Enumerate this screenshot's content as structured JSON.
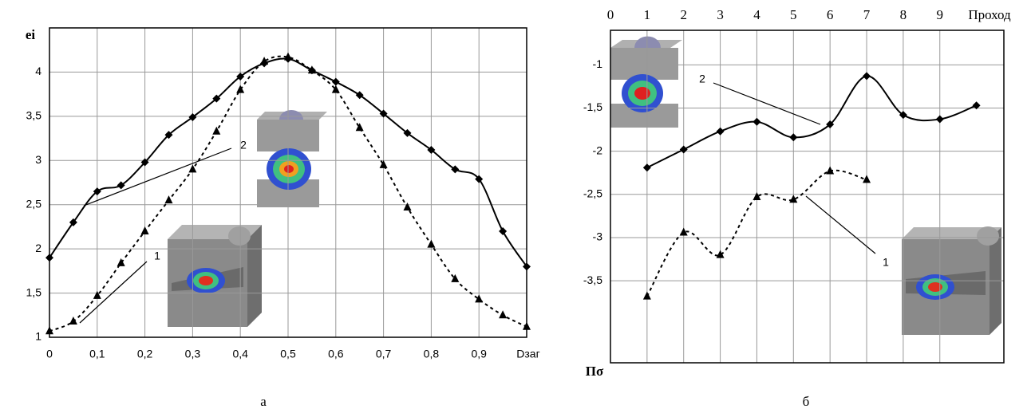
{
  "chart_data": [
    {
      "type": "line",
      "x": [
        0,
        0.05,
        0.1,
        0.15,
        0.2,
        0.25,
        0.3,
        0.35,
        0.4,
        0.45,
        0.5,
        0.55,
        0.6,
        0.65,
        0.7,
        0.75,
        0.8,
        0.85,
        0.9,
        0.95,
        1.0
      ],
      "series": [
        {
          "name": "1",
          "color": "#000000",
          "marker": "triangle",
          "style": "dashed",
          "values": [
            1.07,
            1.18,
            1.47,
            1.84,
            2.2,
            2.55,
            2.9,
            3.33,
            3.8,
            4.12,
            4.17,
            4.02,
            3.8,
            3.37,
            2.95,
            2.47,
            2.05,
            1.66,
            1.43,
            1.25,
            1.12
          ]
        },
        {
          "name": "2",
          "color": "#000000",
          "marker": "diamond",
          "style": "solid",
          "values": [
            1.9,
            2.3,
            2.65,
            2.72,
            2.98,
            3.29,
            3.49,
            3.7,
            3.95,
            4.1,
            4.15,
            4.02,
            3.89,
            3.74,
            3.53,
            3.31,
            3.12,
            2.9,
            2.79,
            2.2,
            1.8
          ]
        }
      ],
      "xlim": [
        0,
        1
      ],
      "ylim": [
        1,
        4.5
      ],
      "xticks": [
        0,
        {
          "value": 0.1,
          "label": "0,1"
        },
        {
          "value": 0.2,
          "label": "0,2"
        },
        {
          "value": 0.3,
          "label": "0,3"
        },
        {
          "value": 0.4,
          "label": "0,4"
        },
        {
          "value": 0.5,
          "label": "0,5"
        },
        {
          "value": 0.6,
          "label": "0,6"
        },
        {
          "value": 0.7,
          "label": "0,7"
        },
        {
          "value": 0.8,
          "label": "0,8"
        },
        {
          "value": 0.9,
          "label": "0,9"
        }
      ],
      "yticks": [
        1,
        {
          "value": 1.5,
          "label": "1,5"
        },
        2,
        {
          "value": 2.5,
          "label": "2,5"
        },
        3,
        {
          "value": 3.5,
          "label": "3,5"
        },
        4
      ],
      "grid": true,
      "x_label": "Dзаг",
      "y_label": "ei",
      "caption": "а"
    },
    {
      "type": "line",
      "x": [
        1,
        2,
        3,
        4,
        5,
        6,
        7,
        8,
        9,
        10
      ],
      "series": [
        {
          "name": "1",
          "color": "#000000",
          "marker": "triangle",
          "style": "dashed",
          "values": [
            -3.68,
            -2.94,
            -3.2,
            -2.53,
            -2.56,
            -2.23,
            -2.33,
            null,
            null,
            null
          ]
        },
        {
          "name": "2",
          "color": "#000000",
          "marker": "diamond",
          "style": "solid",
          "values": [
            -2.19,
            -1.98,
            -1.77,
            -1.66,
            -1.84,
            -1.69,
            -1.13,
            -1.58,
            -1.63,
            -1.47
          ]
        }
      ],
      "xlim": [
        0,
        10.75
      ],
      "ylim": [
        -4.45,
        -0.6
      ],
      "xticks": [
        0,
        1,
        2,
        3,
        4,
        5,
        6,
        7,
        8,
        9
      ],
      "yticks": [
        -1,
        {
          "value": -1.5,
          "label": "-1,5"
        },
        -2,
        {
          "value": -2.5,
          "label": "-2,5"
        },
        -3,
        {
          "value": -3.5,
          "label": "-3,5"
        }
      ],
      "grid": true,
      "x_label": "Проход",
      "y_label": "Пσ",
      "caption": "б"
    }
  ]
}
